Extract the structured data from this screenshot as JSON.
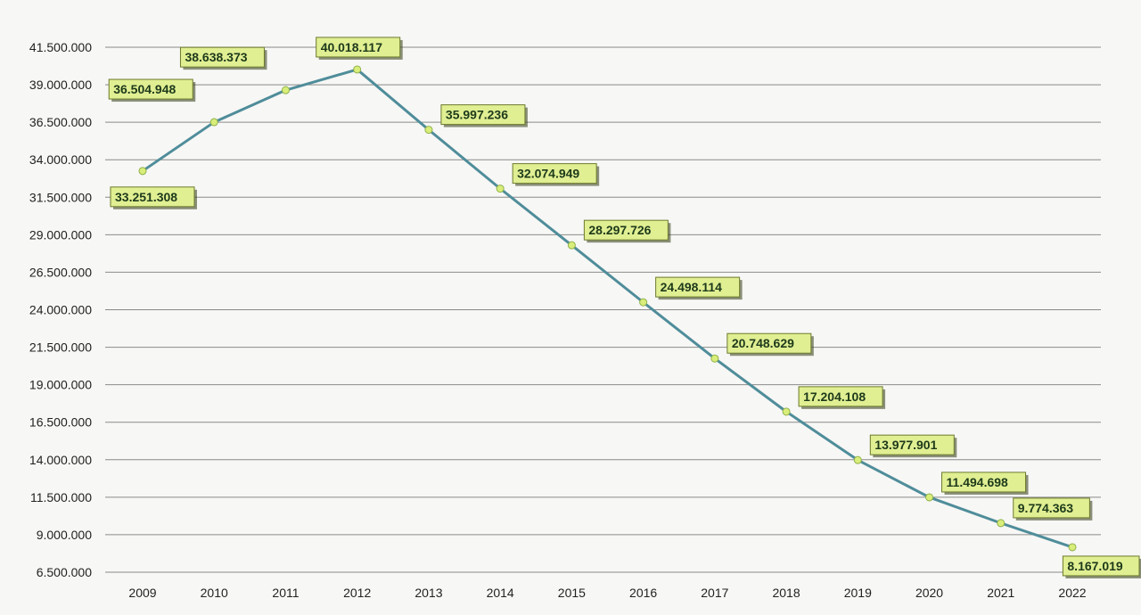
{
  "chart_data": {
    "type": "line",
    "title": "",
    "xlabel": "",
    "ylabel": "",
    "categories": [
      "2009",
      "2010",
      "2011",
      "2012",
      "2013",
      "2014",
      "2015",
      "2016",
      "2017",
      "2018",
      "2019",
      "2020",
      "2021",
      "2022"
    ],
    "series": [
      {
        "name": "",
        "values": [
          33251308,
          36504948,
          38638373,
          40018117,
          35997236,
          32074949,
          28297726,
          24498114,
          20748629,
          17204108,
          13977901,
          11494698,
          9774363,
          8167019
        ],
        "labels": [
          "33.251.308",
          "36.504.948",
          "38.638.373",
          "40.018.117",
          "35.997.236",
          "32.074.949",
          "28.297.726",
          "24.498.114",
          "20.748.629",
          "17.204.108",
          "13.977.901",
          "11.494.698",
          "9.774.363",
          "8.167.019"
        ]
      }
    ],
    "ylim": [
      6500000,
      41500000
    ],
    "yticks": [
      6500000,
      9000000,
      11500000,
      14000000,
      16500000,
      19000000,
      21500000,
      24000000,
      26500000,
      29000000,
      31500000,
      34000000,
      36500000,
      39000000,
      41500000
    ],
    "ytick_labels": [
      "6.500.000",
      "9.000.000",
      "11.500.000",
      "14.000.000",
      "16.500.000",
      "19.000.000",
      "21.500.000",
      "24.000.000",
      "26.500.000",
      "29.000.000",
      "31.500.000",
      "34.000.000",
      "36.500.000",
      "39.000.000",
      "41.500.000"
    ],
    "grid": true,
    "colors": {
      "line": "#4f8d9a",
      "label_fill": "#e1ef93",
      "marker": "#d9ee7a"
    }
  }
}
